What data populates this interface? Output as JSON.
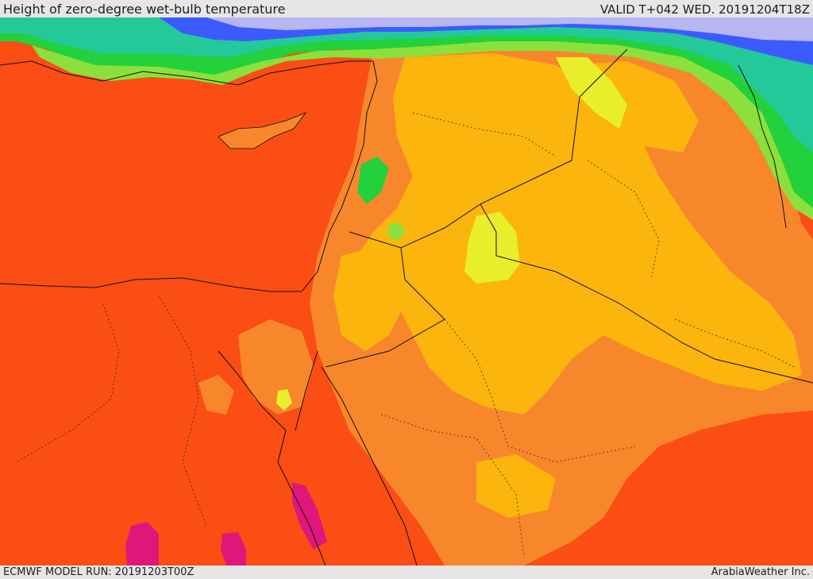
{
  "header": {
    "title": "Height of zero-degree wet-bulb temperature",
    "valid": "VALID T+042 WED. 20191204T18Z"
  },
  "footer": {
    "model_run": "ECMWF MODEL RUN: 20191203T00Z",
    "credit": "ArabiaWeather Inc."
  },
  "palette": {
    "deep_red_orange": "#fa4e14",
    "orange": "#f8872c",
    "amber": "#fbb50c",
    "yellow": "#e8ee2c",
    "light_green": "#8ce03c",
    "green": "#22d13c",
    "teal": "#24c99a",
    "blue": "#3b5bff",
    "lavender": "#b7b5f2",
    "magenta": "#e0167a",
    "border_line": "#111111"
  }
}
